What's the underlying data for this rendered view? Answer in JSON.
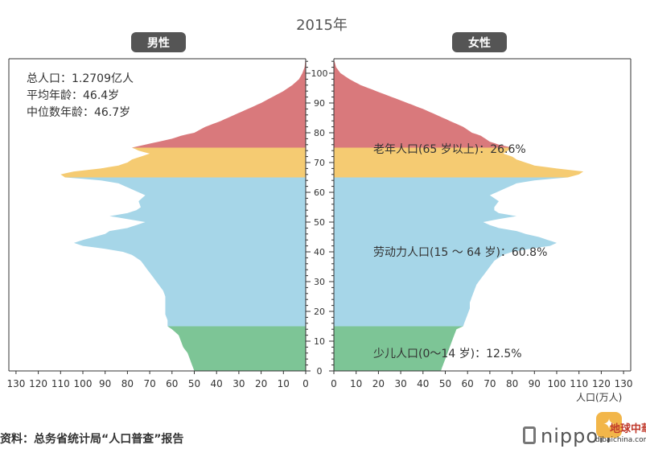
{
  "chart_data": {
    "type": "population-pyramid",
    "title": "2015年",
    "panels": [
      {
        "name": "男性",
        "side": "left"
      },
      {
        "name": "女性",
        "side": "right"
      }
    ],
    "x_ticks_left": [
      "130",
      "120",
      "110",
      "100",
      "90",
      "80",
      "70",
      "60",
      "50",
      "40",
      "30",
      "20",
      "10",
      "0"
    ],
    "x_ticks_right": [
      "0",
      "10",
      "20",
      "30",
      "40",
      "50",
      "60",
      "70",
      "80",
      "90",
      "100",
      "110",
      "120",
      "130"
    ],
    "age_ticks": [
      "0",
      "10",
      "20",
      "30",
      "40",
      "50",
      "60",
      "70",
      "80",
      "90",
      "100"
    ],
    "xlim": [
      0,
      130
    ],
    "ylim": [
      0,
      105
    ],
    "xlabel": "人口(万人)",
    "stats": [
      "总人口：1.2709亿人",
      "平均年龄：46.4岁",
      "中位数年龄：46.7岁"
    ],
    "groups": [
      {
        "label": "老年人口(65 岁以上)：26.6%",
        "age_min": 65,
        "age_max": 105,
        "color": "#d9797c",
        "color_band": "#f5cb72"
      },
      {
        "label": "劳动力人口(15 ～ 64 岁)：60.8%",
        "age_min": 15,
        "age_max": 64,
        "color": "#a6d6e8"
      },
      {
        "label": "少儿人口(0～14 岁)：12.5%",
        "age_min": 0,
        "age_max": 14,
        "color": "#7dc596"
      }
    ],
    "ages": [
      0,
      2,
      4,
      6,
      8,
      10,
      12,
      14,
      15,
      17,
      19,
      21,
      23,
      25,
      27,
      29,
      31,
      33,
      35,
      37,
      39,
      40,
      41,
      42,
      43,
      44,
      45,
      46,
      47,
      48,
      49,
      50,
      51,
      52,
      53,
      54,
      55,
      57,
      59,
      61,
      63,
      64,
      65,
      66,
      67,
      68,
      69,
      70,
      71,
      72,
      73,
      74,
      75,
      76,
      77,
      78,
      79,
      80,
      82,
      84,
      86,
      88,
      90,
      92,
      94,
      96,
      98,
      100,
      102,
      104
    ],
    "male": [
      50,
      51,
      52,
      53,
      55,
      56,
      57,
      60,
      62,
      62,
      63,
      63,
      63,
      63,
      64,
      66,
      68,
      70,
      72,
      74,
      78,
      82,
      90,
      100,
      104,
      100,
      95,
      90,
      88,
      80,
      76,
      72,
      80,
      88,
      80,
      76,
      74,
      75,
      72,
      78,
      84,
      92,
      108,
      110,
      104,
      92,
      84,
      80,
      78,
      74,
      70,
      75,
      78,
      72,
      66,
      60,
      56,
      50,
      45,
      38,
      32,
      26,
      20,
      15,
      10,
      6,
      3,
      1.5,
      0.5,
      0.2
    ],
    "female": [
      48,
      49,
      50,
      51,
      52,
      53,
      54,
      55,
      58,
      59,
      60,
      61,
      61,
      62,
      63,
      64,
      66,
      68,
      70,
      72,
      76,
      80,
      88,
      97,
      100,
      96,
      92,
      86,
      82,
      74,
      70,
      67,
      74,
      82,
      74,
      72,
      72,
      74,
      70,
      76,
      82,
      90,
      105,
      110,
      112,
      100,
      90,
      86,
      82,
      80,
      76,
      78,
      80,
      74,
      70,
      68,
      66,
      62,
      58,
      52,
      46,
      40,
      33,
      26,
      19,
      12,
      7,
      3,
      1,
      0.3
    ],
    "colors": {
      "elderly": "#d9797c",
      "elderly_band": "#f5cb72",
      "working": "#a6d6e8",
      "children": "#7dc596"
    }
  },
  "footer": {
    "source": "资料：总务省统计局“人口普查”报告",
    "brand": "nippon",
    "watermark": "地球中華網",
    "watermark_url": "dibaichina.com"
  }
}
